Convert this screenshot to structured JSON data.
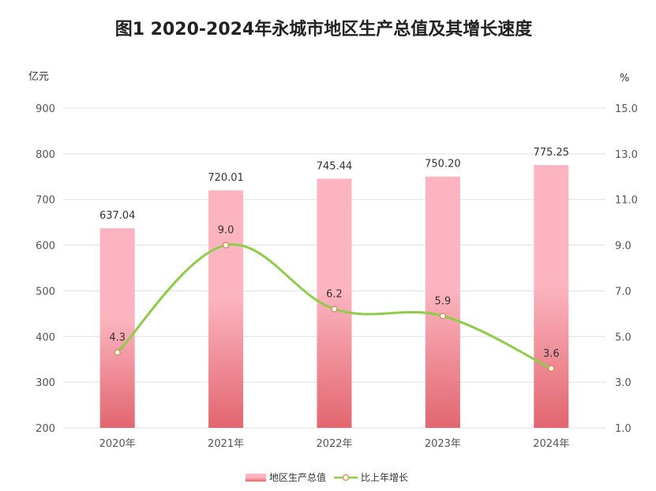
{
  "chart_data": {
    "type": "bar+line",
    "title": "图1  2020-2024年永城市地区生产总值及其增长速度",
    "categories": [
      "2020年",
      "2021年",
      "2022年",
      "2023年",
      "2024年"
    ],
    "series": [
      {
        "name": "地区生产总值",
        "type": "bar",
        "axis": "left",
        "values": [
          637.04,
          720.01,
          745.44,
          750.2,
          775.25
        ],
        "labels": [
          "637.04",
          "720.01",
          "745.44",
          "750.20",
          "775.25"
        ]
      },
      {
        "name": "比上年增长",
        "type": "line",
        "axis": "right",
        "values": [
          4.3,
          9.0,
          6.2,
          5.9,
          3.6
        ],
        "labels": [
          "4.3",
          "9.0",
          "6.2",
          "5.9",
          "3.6"
        ]
      }
    ],
    "y_left": {
      "label": "亿元",
      "min": 200,
      "max": 900,
      "ticks": [
        "200",
        "300",
        "400",
        "500",
        "600",
        "700",
        "800",
        "900"
      ]
    },
    "y_right": {
      "label": "%",
      "min": 1.0,
      "max": 15.0,
      "ticks": [
        "1.0",
        "3.0",
        "5.0",
        "7.0",
        "9.0",
        "11.0",
        "13.0",
        "15.0"
      ]
    },
    "grid": true,
    "legend_position": "bottom-center"
  },
  "colors": {
    "bar_top": "#fcb5c0",
    "bar_bottom": "#e2666f",
    "line": "#8fcc4a",
    "marker_fill": "#ffffff",
    "marker_stroke": "#d48a4a",
    "grid": "#e0e0e0"
  }
}
